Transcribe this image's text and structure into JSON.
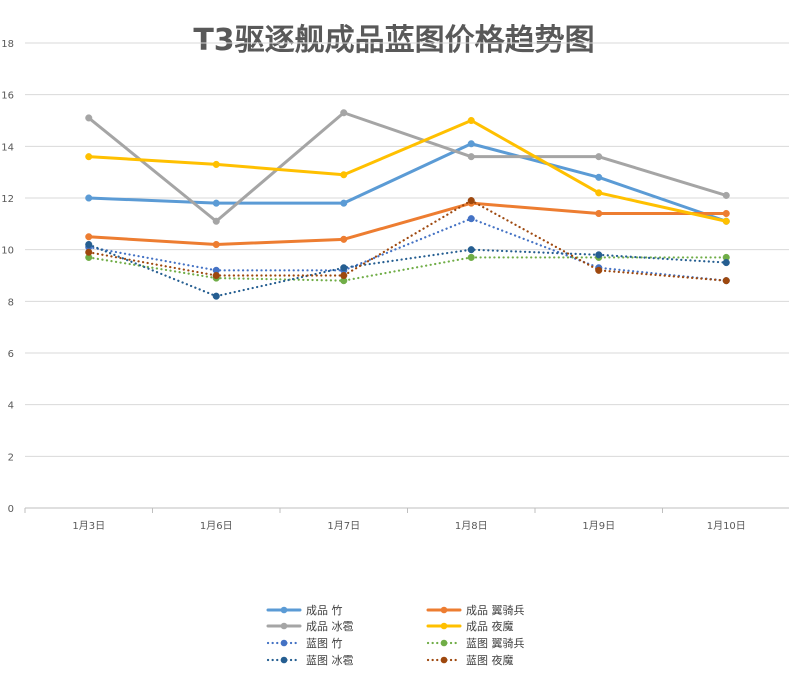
{
  "chart_data": {
    "type": "line",
    "title": "T3驱逐舰成品蓝图价格趋势图",
    "xlabel": "",
    "ylabel": "",
    "categories": [
      "1月3日",
      "1月6日",
      "1月7日",
      "1月8日",
      "1月9日",
      "1月10日"
    ],
    "ylim": [
      0,
      18
    ],
    "yticks": [
      0,
      2,
      4,
      6,
      8,
      10,
      12,
      14,
      16,
      18
    ],
    "grid": "horizontal",
    "legend_position": "bottom",
    "series": [
      {
        "name": "成品 竹",
        "values": [
          12.0,
          11.8,
          11.8,
          14.1,
          12.8,
          11.1
        ],
        "color": "#5B9BD5",
        "style": "solid"
      },
      {
        "name": "成品 翼骑兵",
        "values": [
          10.5,
          10.2,
          10.4,
          11.8,
          11.4,
          11.4
        ],
        "color": "#ED7D31",
        "style": "solid"
      },
      {
        "name": "成品 冰雹",
        "values": [
          15.1,
          11.1,
          15.3,
          13.6,
          13.6,
          12.1
        ],
        "color": "#A5A5A5",
        "style": "solid"
      },
      {
        "name": "成品 夜魔",
        "values": [
          13.6,
          13.3,
          12.9,
          15.0,
          12.2,
          11.1
        ],
        "color": "#FFC000",
        "style": "solid"
      },
      {
        "name": "蓝图 竹",
        "values": [
          10.1,
          9.2,
          9.2,
          11.2,
          9.3,
          8.8
        ],
        "color": "#4472C4",
        "style": "dotted"
      },
      {
        "name": "蓝图 翼骑兵",
        "values": [
          9.7,
          8.9,
          8.8,
          9.7,
          9.7,
          9.7
        ],
        "color": "#70AD47",
        "style": "dotted"
      },
      {
        "name": "蓝图 冰雹",
        "values": [
          10.2,
          8.2,
          9.3,
          10.0,
          9.8,
          9.5
        ],
        "color": "#255E91",
        "style": "dotted"
      },
      {
        "name": "蓝图 夜魔",
        "values": [
          9.9,
          9.0,
          9.0,
          11.9,
          9.2,
          8.8
        ],
        "color": "#9E480E",
        "style": "dotted"
      }
    ]
  }
}
